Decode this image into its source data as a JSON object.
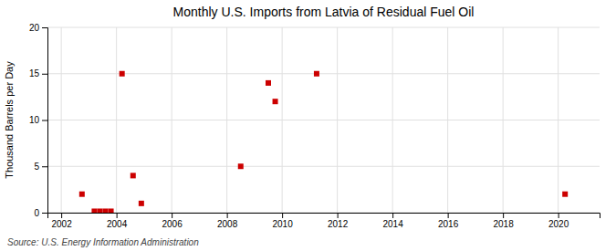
{
  "chart_data": {
    "type": "scatter",
    "title": "Monthly U.S. Imports from Latvia of Residual Fuel Oil",
    "ylabel": "Thousand Barrels per Day",
    "source": "Source: U.S. Energy Information Administration",
    "x": [
      2002.75,
      2003.2,
      2003.4,
      2003.6,
      2003.8,
      2004.2,
      2004.6,
      2004.9,
      2008.5,
      2009.5,
      2009.75,
      2011.25,
      2020.25
    ],
    "values": [
      2,
      0.15,
      0.15,
      0.15,
      0.15,
      15,
      4,
      1,
      5,
      14,
      12,
      15,
      2
    ],
    "color": "#cc0000",
    "marker": "square",
    "xlim": [
      2001.5,
      2021.5
    ],
    "ylim": [
      0,
      20
    ],
    "xticks": [
      2002,
      2004,
      2006,
      2008,
      2010,
      2012,
      2014,
      2016,
      2018,
      2020
    ],
    "yticks": [
      0,
      5,
      10,
      15,
      20
    ],
    "grid": true
  }
}
